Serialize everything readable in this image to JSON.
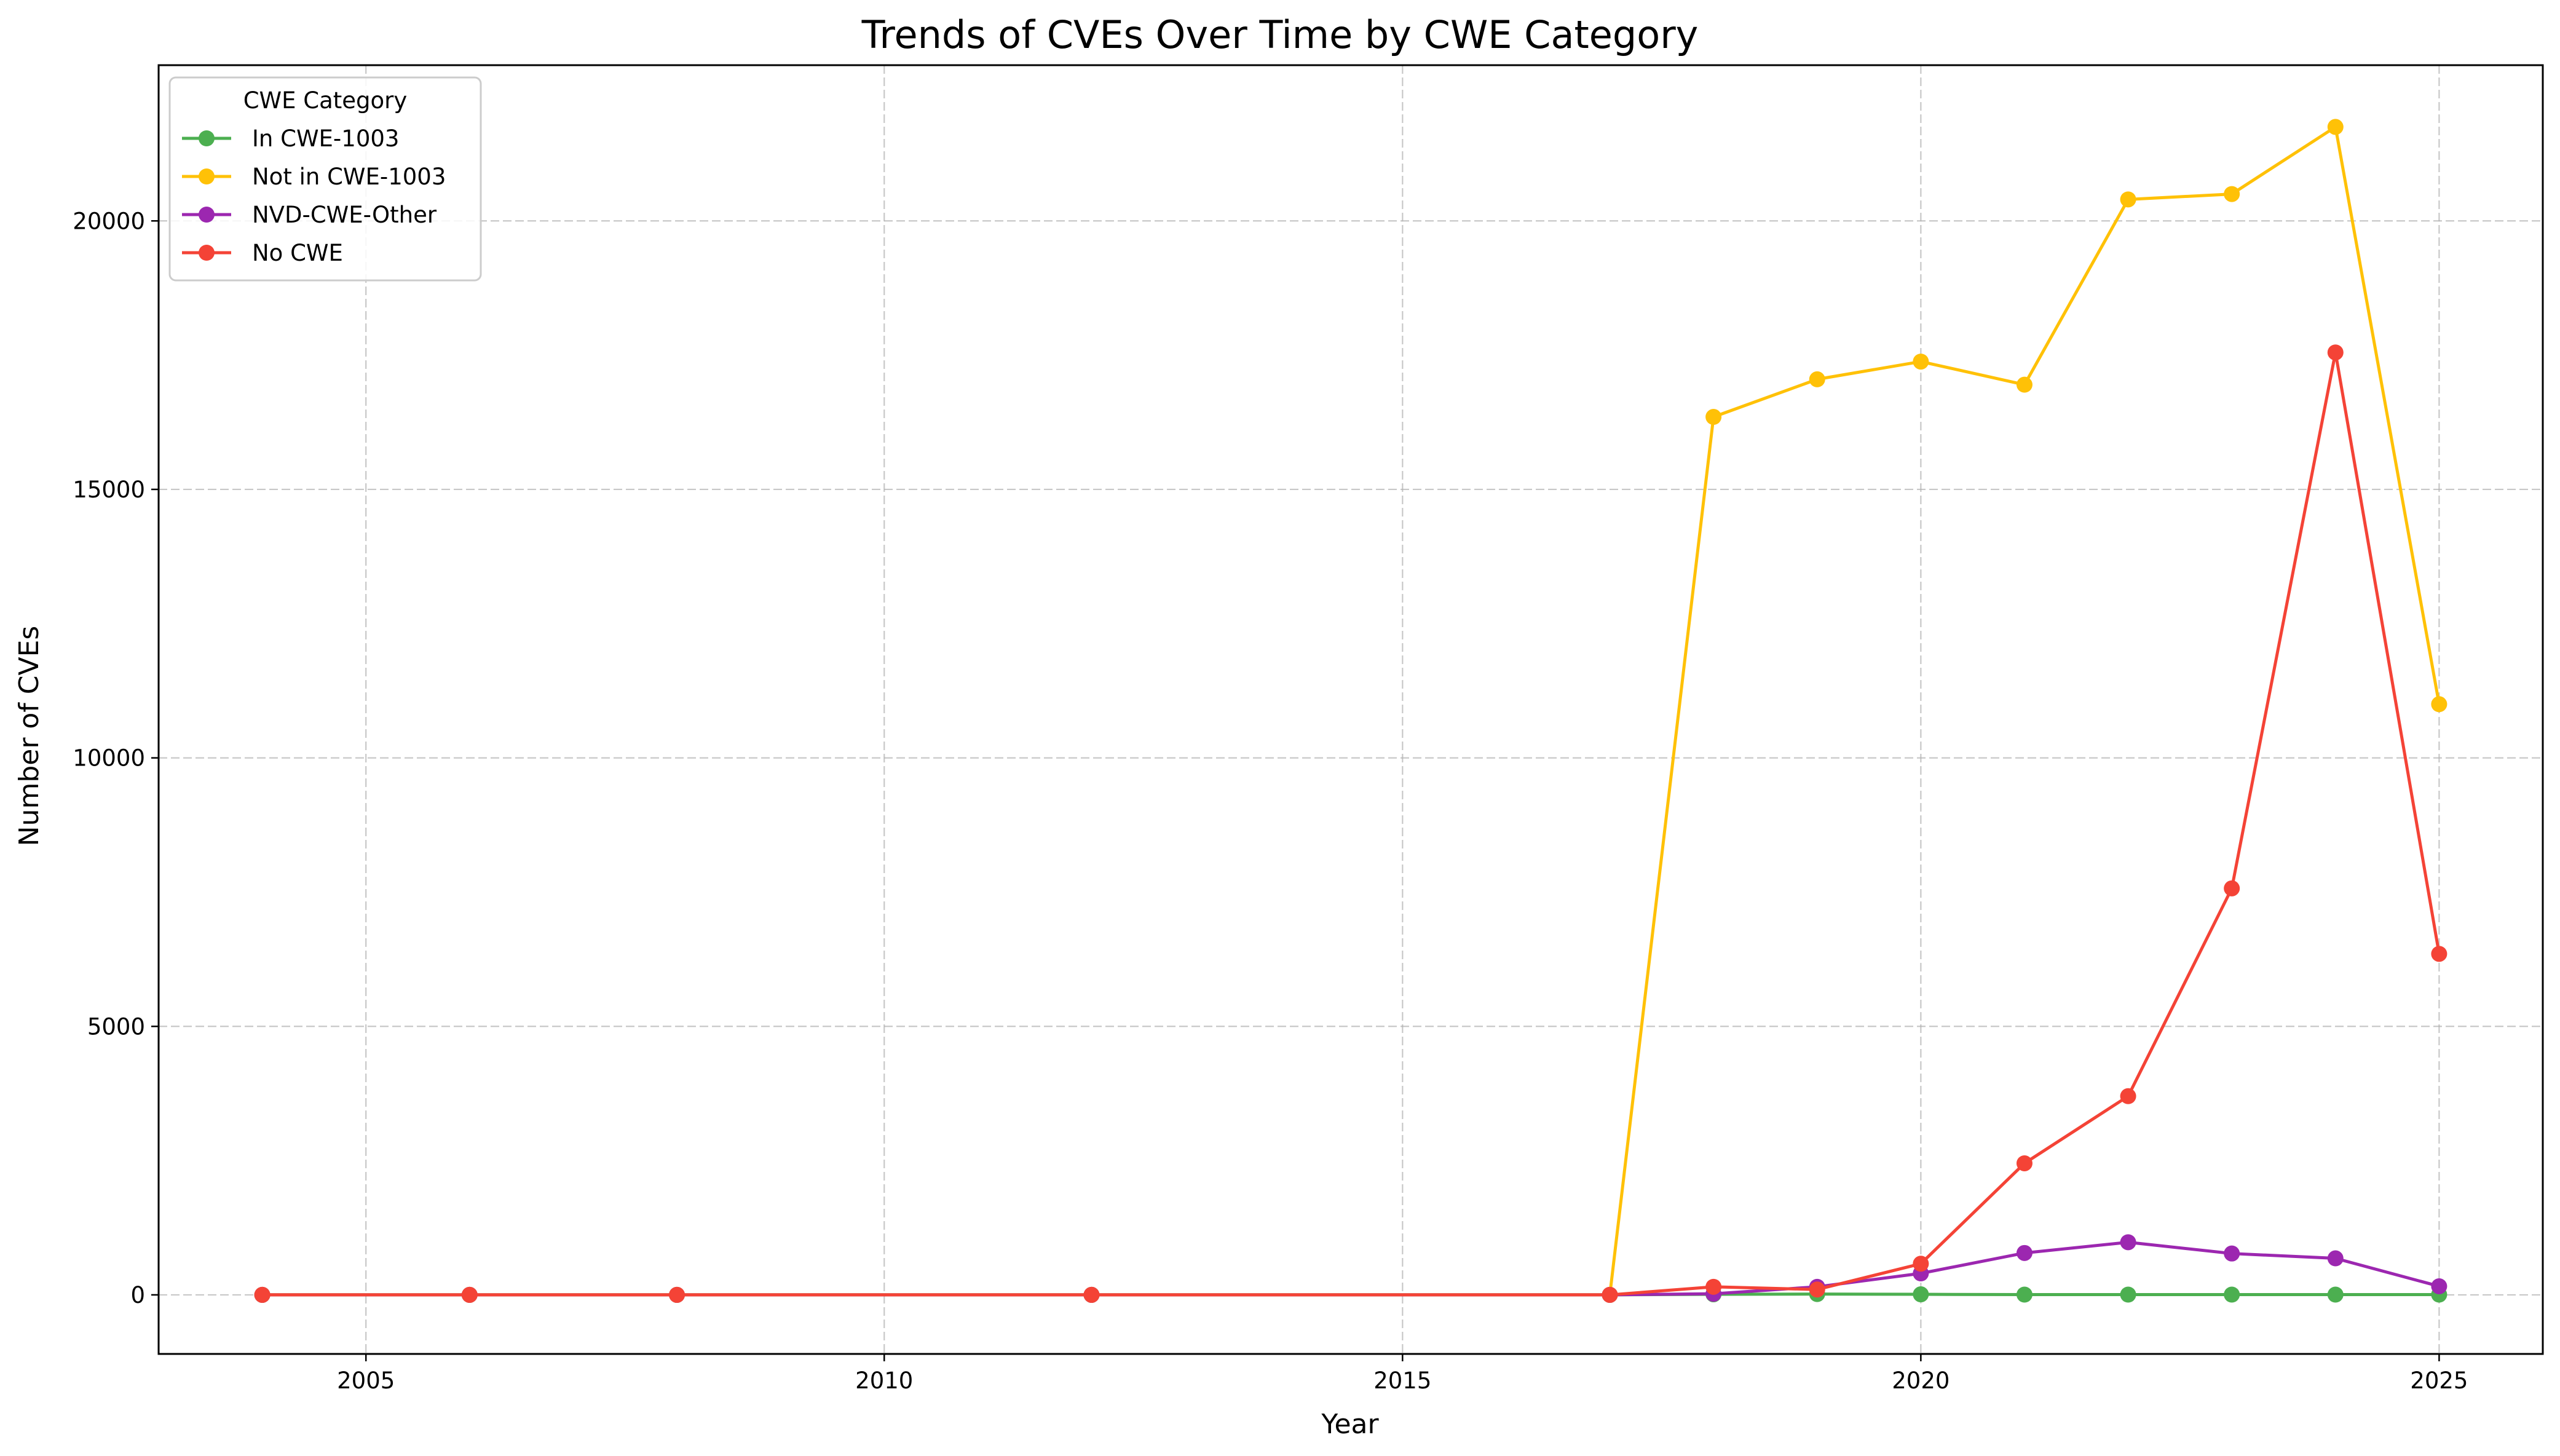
{
  "chart_data": {
    "type": "line",
    "title": "Trends of CVEs Over Time by CWE Category",
    "xlabel": "Year",
    "ylabel": "Number of CVEs",
    "xlim": [
      2003,
      2026
    ],
    "ylim": [
      -1100,
      22900
    ],
    "x_ticks": [
      2005,
      2010,
      2015,
      2020,
      2025
    ],
    "y_ticks": [
      0,
      5000,
      10000,
      15000,
      20000
    ],
    "grid": true,
    "legend": {
      "title": "CWE Category",
      "location": "upper-left"
    },
    "series": [
      {
        "name": "In CWE-1003",
        "color": "#4caf50",
        "points": [
          [
            2004,
            0
          ],
          [
            2006,
            0
          ],
          [
            2008,
            0
          ],
          [
            2012,
            0
          ],
          [
            2017,
            0
          ],
          [
            2018,
            10
          ],
          [
            2019,
            15
          ],
          [
            2020,
            10
          ],
          [
            2021,
            5
          ],
          [
            2022,
            5
          ],
          [
            2023,
            5
          ],
          [
            2024,
            5
          ],
          [
            2025,
            5
          ]
        ]
      },
      {
        "name": "Not in CWE-1003",
        "color": "#ffc107",
        "points": [
          [
            2004,
            0
          ],
          [
            2006,
            0
          ],
          [
            2008,
            0
          ],
          [
            2012,
            0
          ],
          [
            2017,
            0
          ],
          [
            2018,
            16350
          ],
          [
            2019,
            17050
          ],
          [
            2020,
            17380
          ],
          [
            2021,
            16950
          ],
          [
            2022,
            20400
          ],
          [
            2023,
            20500
          ],
          [
            2024,
            21750
          ],
          [
            2025,
            11000
          ]
        ]
      },
      {
        "name": "NVD-CWE-Other",
        "color": "#9c27b0",
        "points": [
          [
            2004,
            0
          ],
          [
            2006,
            0
          ],
          [
            2008,
            0
          ],
          [
            2012,
            0
          ],
          [
            2017,
            0
          ],
          [
            2018,
            20
          ],
          [
            2019,
            150
          ],
          [
            2020,
            400
          ],
          [
            2021,
            780
          ],
          [
            2022,
            980
          ],
          [
            2023,
            770
          ],
          [
            2024,
            680
          ],
          [
            2025,
            160
          ]
        ]
      },
      {
        "name": "No CWE",
        "color": "#f44336",
        "points": [
          [
            2004,
            0
          ],
          [
            2006,
            0
          ],
          [
            2008,
            0
          ],
          [
            2012,
            0
          ],
          [
            2017,
            0
          ],
          [
            2018,
            150
          ],
          [
            2019,
            100
          ],
          [
            2020,
            580
          ],
          [
            2021,
            2450
          ],
          [
            2022,
            3700
          ],
          [
            2023,
            7570
          ],
          [
            2024,
            17550
          ],
          [
            2025,
            6350
          ]
        ]
      }
    ]
  }
}
